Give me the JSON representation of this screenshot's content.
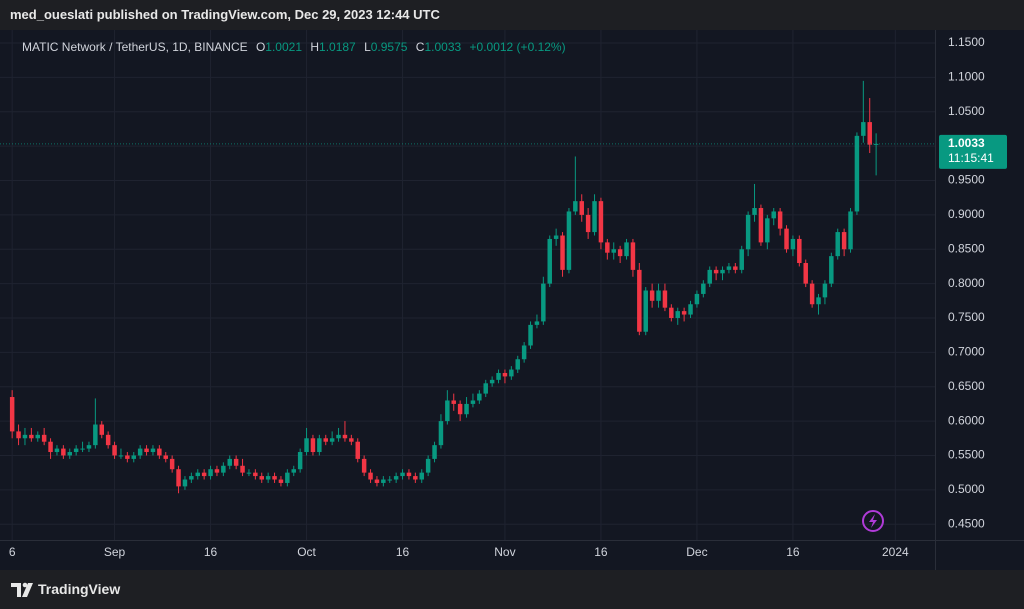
{
  "header": {
    "published": "med_oueslati published on TradingView.com, Dec 29, 2023 12:44 UTC"
  },
  "chart_data": {
    "type": "candlestick",
    "symbol": "MATIC Network / TetherUS, 1D, BINANCE",
    "legend_labels": [
      "O",
      "H",
      "L",
      "C"
    ],
    "change": "+0.0012 (+0.12%)",
    "countdown": "11:15:41",
    "up_color": "#089981",
    "down_color": "#f23645",
    "open": [
      0.635,
      0.585,
      0.575,
      0.58,
      0.575,
      0.58,
      0.57,
      0.555,
      0.56,
      0.55,
      0.555,
      0.56,
      0.56,
      0.565,
      0.595,
      0.58,
      0.565,
      0.55,
      0.55,
      0.545,
      0.55,
      0.56,
      0.555,
      0.56,
      0.55,
      0.545,
      0.53,
      0.505,
      0.515,
      0.52,
      0.525,
      0.52,
      0.53,
      0.525,
      0.535,
      0.545,
      0.535,
      0.525,
      0.525,
      0.52,
      0.515,
      0.52,
      0.515,
      0.51,
      0.525,
      0.53,
      0.555,
      0.575,
      0.555,
      0.575,
      0.57,
      0.575,
      0.58,
      0.575,
      0.57,
      0.545,
      0.525,
      0.515,
      0.51,
      0.515,
      0.515,
      0.52,
      0.525,
      0.52,
      0.515,
      0.525,
      0.545,
      0.565,
      0.6,
      0.63,
      0.625,
      0.61,
      0.625,
      0.63,
      0.64,
      0.655,
      0.66,
      0.67,
      0.665,
      0.675,
      0.69,
      0.71,
      0.74,
      0.745,
      0.8,
      0.865,
      0.87,
      0.82,
      0.905,
      0.92,
      0.9,
      0.875,
      0.92,
      0.86,
      0.845,
      0.85,
      0.84,
      0.86,
      0.82,
      0.73,
      0.79,
      0.775,
      0.79,
      0.765,
      0.75,
      0.76,
      0.755,
      0.77,
      0.785,
      0.8,
      0.82,
      0.815,
      0.82,
      0.825,
      0.82,
      0.85,
      0.9,
      0.91,
      0.86,
      0.895,
      0.905,
      0.88,
      0.85,
      0.865,
      0.83,
      0.8,
      0.77,
      0.78,
      0.8,
      0.84,
      0.875,
      0.85,
      0.905,
      1.015,
      1.035,
      1.0021
    ],
    "high": [
      0.645,
      0.595,
      0.59,
      0.59,
      0.585,
      0.59,
      0.575,
      0.565,
      0.565,
      0.56,
      0.565,
      0.57,
      0.57,
      0.633,
      0.6,
      0.585,
      0.57,
      0.56,
      0.555,
      0.555,
      0.565,
      0.565,
      0.565,
      0.565,
      0.555,
      0.55,
      0.535,
      0.52,
      0.525,
      0.53,
      0.53,
      0.535,
      0.535,
      0.54,
      0.55,
      0.55,
      0.545,
      0.53,
      0.53,
      0.525,
      0.525,
      0.525,
      0.52,
      0.53,
      0.535,
      0.56,
      0.59,
      0.58,
      0.58,
      0.58,
      0.585,
      0.59,
      0.6,
      0.58,
      0.575,
      0.55,
      0.53,
      0.52,
      0.52,
      0.52,
      0.525,
      0.53,
      0.53,
      0.525,
      0.53,
      0.55,
      0.57,
      0.61,
      0.645,
      0.64,
      0.63,
      0.635,
      0.64,
      0.645,
      0.66,
      0.665,
      0.675,
      0.675,
      0.68,
      0.695,
      0.715,
      0.745,
      0.755,
      0.81,
      0.87,
      0.88,
      0.875,
      0.91,
      0.985,
      0.93,
      0.91,
      0.93,
      0.925,
      0.865,
      0.86,
      0.855,
      0.865,
      0.865,
      0.83,
      0.795,
      0.8,
      0.8,
      0.8,
      0.77,
      0.765,
      0.765,
      0.775,
      0.79,
      0.805,
      0.825,
      0.825,
      0.825,
      0.83,
      0.83,
      0.855,
      0.905,
      0.945,
      0.915,
      0.9,
      0.91,
      0.91,
      0.885,
      0.87,
      0.87,
      0.835,
      0.805,
      0.785,
      0.805,
      0.845,
      0.88,
      0.88,
      0.91,
      1.02,
      1.095,
      1.07,
      1.0187
    ],
    "low": [
      0.575,
      0.565,
      0.565,
      0.57,
      0.57,
      0.565,
      0.545,
      0.55,
      0.545,
      0.545,
      0.55,
      0.555,
      0.555,
      0.56,
      0.575,
      0.56,
      0.545,
      0.545,
      0.54,
      0.54,
      0.545,
      0.55,
      0.55,
      0.545,
      0.54,
      0.525,
      0.495,
      0.5,
      0.51,
      0.515,
      0.515,
      0.515,
      0.52,
      0.52,
      0.53,
      0.53,
      0.52,
      0.52,
      0.515,
      0.51,
      0.51,
      0.51,
      0.505,
      0.505,
      0.52,
      0.525,
      0.55,
      0.55,
      0.55,
      0.565,
      0.565,
      0.57,
      0.57,
      0.565,
      0.54,
      0.52,
      0.51,
      0.505,
      0.505,
      0.51,
      0.51,
      0.515,
      0.515,
      0.51,
      0.51,
      0.52,
      0.54,
      0.56,
      0.595,
      0.615,
      0.6,
      0.605,
      0.62,
      0.625,
      0.635,
      0.65,
      0.655,
      0.655,
      0.66,
      0.67,
      0.685,
      0.705,
      0.735,
      0.74,
      0.795,
      0.855,
      0.81,
      0.815,
      0.9,
      0.89,
      0.865,
      0.87,
      0.85,
      0.835,
      0.835,
      0.83,
      0.835,
      0.81,
      0.725,
      0.725,
      0.765,
      0.765,
      0.76,
      0.745,
      0.74,
      0.745,
      0.75,
      0.765,
      0.78,
      0.795,
      0.805,
      0.805,
      0.815,
      0.815,
      0.815,
      0.84,
      0.89,
      0.855,
      0.85,
      0.885,
      0.87,
      0.845,
      0.84,
      0.825,
      0.795,
      0.765,
      0.755,
      0.77,
      0.795,
      0.835,
      0.84,
      0.845,
      0.9,
      1.005,
      0.99,
      0.9575
    ],
    "close": [
      0.585,
      0.575,
      0.58,
      0.575,
      0.58,
      0.57,
      0.555,
      0.56,
      0.55,
      0.555,
      0.56,
      0.56,
      0.565,
      0.595,
      0.58,
      0.565,
      0.55,
      0.55,
      0.545,
      0.55,
      0.56,
      0.555,
      0.56,
      0.55,
      0.545,
      0.53,
      0.505,
      0.515,
      0.52,
      0.525,
      0.52,
      0.53,
      0.525,
      0.535,
      0.545,
      0.535,
      0.525,
      0.525,
      0.52,
      0.515,
      0.52,
      0.515,
      0.51,
      0.525,
      0.53,
      0.555,
      0.575,
      0.555,
      0.575,
      0.57,
      0.575,
      0.58,
      0.575,
      0.57,
      0.545,
      0.525,
      0.515,
      0.51,
      0.515,
      0.515,
      0.52,
      0.525,
      0.52,
      0.515,
      0.525,
      0.545,
      0.565,
      0.6,
      0.63,
      0.625,
      0.61,
      0.625,
      0.63,
      0.64,
      0.655,
      0.66,
      0.67,
      0.665,
      0.675,
      0.69,
      0.71,
      0.74,
      0.745,
      0.8,
      0.865,
      0.87,
      0.82,
      0.905,
      0.92,
      0.9,
      0.875,
      0.92,
      0.86,
      0.845,
      0.85,
      0.84,
      0.86,
      0.82,
      0.73,
      0.79,
      0.775,
      0.79,
      0.765,
      0.75,
      0.76,
      0.755,
      0.77,
      0.785,
      0.8,
      0.82,
      0.815,
      0.82,
      0.825,
      0.82,
      0.85,
      0.9,
      0.91,
      0.86,
      0.895,
      0.905,
      0.88,
      0.85,
      0.865,
      0.83,
      0.8,
      0.77,
      0.78,
      0.8,
      0.84,
      0.875,
      0.85,
      0.905,
      1.015,
      1.035,
      1.0021,
      1.0033
    ],
    "xlim": [
      -1.9,
      144.2
    ],
    "xticks": [
      {
        "value": 0,
        "label": "6"
      },
      {
        "value": 16,
        "label": "Sep"
      },
      {
        "value": 31,
        "label": "16"
      },
      {
        "value": 46,
        "label": "Oct"
      },
      {
        "value": 61,
        "label": "16"
      },
      {
        "value": 77,
        "label": "Nov"
      },
      {
        "value": 92,
        "label": "16"
      },
      {
        "value": 107,
        "label": "Dec"
      },
      {
        "value": 122,
        "label": "16"
      },
      {
        "value": 138,
        "label": "2024"
      }
    ],
    "ylim": [
      0.427,
      1.169
    ],
    "yticks": [
      {
        "value": 0.45,
        "label": "0.4500"
      },
      {
        "value": 0.5,
        "label": "0.5000"
      },
      {
        "value": 0.55,
        "label": "0.5500"
      },
      {
        "value": 0.6,
        "label": "0.6000"
      },
      {
        "value": 0.65,
        "label": "0.6500"
      },
      {
        "value": 0.7,
        "label": "0.7000"
      },
      {
        "value": 0.75,
        "label": "0.7500"
      },
      {
        "value": 0.8,
        "label": "0.8000"
      },
      {
        "value": 0.85,
        "label": "0.8500"
      },
      {
        "value": 0.9,
        "label": "0.9000"
      },
      {
        "value": 0.95,
        "label": "0.9500"
      },
      {
        "value": 1.0,
        "label": "1.0000"
      },
      {
        "value": 1.05,
        "label": "1.0500"
      },
      {
        "value": 1.1,
        "label": "1.1000"
      },
      {
        "value": 1.15,
        "label": "1.1500"
      }
    ],
    "grid": true
  },
  "footer": {
    "brand": "TradingView"
  }
}
